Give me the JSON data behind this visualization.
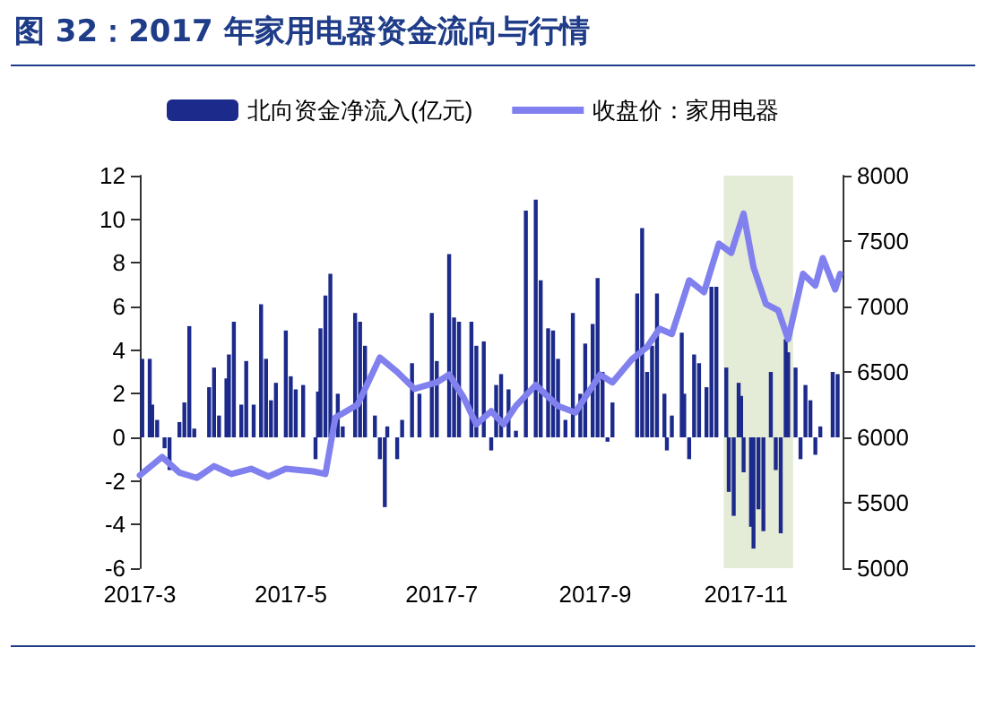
{
  "chart_data": {
    "type": "bar",
    "title": "图 32：2017 年家用电器资金流向与行情",
    "xlim": [
      "2017-03-01",
      "2017-12-10"
    ],
    "xticks": [
      {
        "value": "2017-03-01",
        "label": "2017-3"
      },
      {
        "value": "2017-05-01",
        "label": "2017-5"
      },
      {
        "value": "2017-07-01",
        "label": "2017-7"
      },
      {
        "value": "2017-09-01",
        "label": "2017-9"
      },
      {
        "value": "2017-11-01",
        "label": "2017-11"
      }
    ],
    "ylim": [
      -6,
      12
    ],
    "yticks": [
      -6,
      -4,
      -2,
      0,
      2,
      4,
      6,
      8,
      10,
      12
    ],
    "y2lim": [
      5000,
      8000
    ],
    "y2ticks": [
      5000,
      5500,
      6000,
      6500,
      7000,
      7500,
      8000
    ],
    "grid": false,
    "legend": "top",
    "bands": [
      {
        "axis": "x",
        "from": "2017-10-23",
        "to": "2017-11-20",
        "color": "#dfe8cf"
      }
    ],
    "series": [
      {
        "name": "北向资金净流入(亿元)",
        "color": "#1c2a8c",
        "x": [
          "2017-03-02",
          "2017-03-05",
          "2017-03-06",
          "2017-03-08",
          "2017-03-11",
          "2017-03-13",
          "2017-03-17",
          "2017-03-19",
          "2017-03-21",
          "2017-03-23",
          "2017-03-29",
          "2017-03-31",
          "2017-04-02",
          "2017-04-05",
          "2017-04-06",
          "2017-04-08",
          "2017-04-11",
          "2017-04-13",
          "2017-04-16",
          "2017-04-19",
          "2017-04-21",
          "2017-04-23",
          "2017-04-25",
          "2017-04-29",
          "2017-05-01",
          "2017-05-03",
          "2017-05-06",
          "2017-05-11",
          "2017-05-12",
          "2017-05-13",
          "2017-05-15",
          "2017-05-17",
          "2017-05-20",
          "2017-05-22",
          "2017-05-27",
          "2017-05-29",
          "2017-05-31",
          "2017-06-04",
          "2017-06-06",
          "2017-06-08",
          "2017-06-09",
          "2017-06-13",
          "2017-06-15",
          "2017-06-19",
          "2017-06-22",
          "2017-06-27",
          "2017-06-29",
          "2017-07-04",
          "2017-07-06",
          "2017-07-08",
          "2017-07-13",
          "2017-07-15",
          "2017-07-18",
          "2017-07-21",
          "2017-07-23",
          "2017-07-25",
          "2017-07-28",
          "2017-07-31",
          "2017-08-04",
          "2017-08-08",
          "2017-08-10",
          "2017-08-13",
          "2017-08-15",
          "2017-08-17",
          "2017-08-20",
          "2017-08-23",
          "2017-08-26",
          "2017-08-28",
          "2017-08-31",
          "2017-09-02",
          "2017-09-04",
          "2017-09-06",
          "2017-09-08",
          "2017-09-18",
          "2017-09-20",
          "2017-09-22",
          "2017-09-24",
          "2017-09-26",
          "2017-09-29",
          "2017-09-30",
          "2017-10-02",
          "2017-10-06",
          "2017-10-07",
          "2017-10-09",
          "2017-10-11",
          "2017-10-13",
          "2017-10-16",
          "2017-10-18",
          "2017-10-20",
          "2017-10-24",
          "2017-10-25",
          "2017-10-27",
          "2017-10-29",
          "2017-10-30",
          "2017-10-31",
          "2017-11-03",
          "2017-11-04",
          "2017-11-06",
          "2017-11-08",
          "2017-11-11",
          "2017-11-13",
          "2017-11-15",
          "2017-11-17",
          "2017-11-18",
          "2017-11-21",
          "2017-11-23",
          "2017-11-25",
          "2017-11-27",
          "2017-11-29",
          "2017-12-01",
          "2017-12-06",
          "2017-12-08"
        ],
        "values": [
          3.6,
          3.6,
          1.5,
          0.8,
          -0.5,
          -1.5,
          0.7,
          1.6,
          5.1,
          0.4,
          2.3,
          3.2,
          1,
          2.7,
          3.8,
          5.3,
          1.5,
          3.5,
          1.5,
          6.1,
          3.6,
          1.7,
          2.5,
          4.9,
          2.8,
          2.2,
          2.4,
          -1,
          2.1,
          5,
          6.5,
          7.5,
          2,
          0.5,
          5.7,
          5.3,
          4.2,
          1,
          -1,
          -3.2,
          0.5,
          -1,
          0.8,
          3.4,
          2,
          5.7,
          3.5,
          8.4,
          5.5,
          5.3,
          5.3,
          4.2,
          4.4,
          -0.6,
          2.4,
          2.9,
          2.2,
          0.3,
          10.4,
          10.9,
          7.2,
          5,
          4.9,
          3.6,
          0.8,
          5.7,
          2,
          4.3,
          5.2,
          7.3,
          3,
          -0.2,
          1.6,
          6.6,
          9.6,
          3,
          4.2,
          6.6,
          2,
          -0.6,
          1,
          4.8,
          2,
          -1,
          3.8,
          3.4,
          2.3,
          6.9,
          6.9,
          3.2,
          -2.5,
          -3.6,
          2.5,
          1.9,
          -1.6,
          -4.1,
          -5.1,
          -3.3,
          -4.3,
          3,
          -1.5,
          -4.4,
          4.5,
          3.9,
          3.2,
          -1,
          2.4,
          1.7,
          -0.8,
          0.5,
          3,
          2.9
        ]
      },
      {
        "name": "收盘价：家用电器",
        "type": "line",
        "axis": "y2",
        "color": "#8080ee",
        "marker": "none",
        "line_style": "solid",
        "x": [
          "2017-03-01",
          "2017-03-10",
          "2017-03-17",
          "2017-03-24",
          "2017-03-31",
          "2017-04-07",
          "2017-04-15",
          "2017-04-22",
          "2017-04-29",
          "2017-05-10",
          "2017-05-15",
          "2017-05-19",
          "2017-05-28",
          "2017-06-06",
          "2017-06-13",
          "2017-06-20",
          "2017-06-29",
          "2017-07-04",
          "2017-07-10",
          "2017-07-15",
          "2017-07-21",
          "2017-07-26",
          "2017-07-31",
          "2017-08-08",
          "2017-08-17",
          "2017-08-24",
          "2017-09-03",
          "2017-09-08",
          "2017-09-16",
          "2017-09-22",
          "2017-09-27",
          "2017-10-02",
          "2017-10-09",
          "2017-10-15",
          "2017-10-21",
          "2017-10-26",
          "2017-10-31",
          "2017-11-04",
          "2017-11-09",
          "2017-11-14",
          "2017-11-18",
          "2017-11-24",
          "2017-11-29",
          "2017-12-02",
          "2017-12-07",
          "2017-12-09"
        ],
        "values": [
          5710,
          5850,
          5730,
          5690,
          5780,
          5720,
          5760,
          5700,
          5760,
          5740,
          5720,
          6150,
          6250,
          6610,
          6500,
          6370,
          6420,
          6480,
          6300,
          6100,
          6200,
          6100,
          6240,
          6400,
          6240,
          6190,
          6480,
          6420,
          6600,
          6690,
          6830,
          6790,
          7200,
          7110,
          7480,
          7410,
          7710,
          7300,
          7020,
          6970,
          6750,
          7250,
          7160,
          7370,
          7130,
          7250
        ]
      }
    ]
  }
}
